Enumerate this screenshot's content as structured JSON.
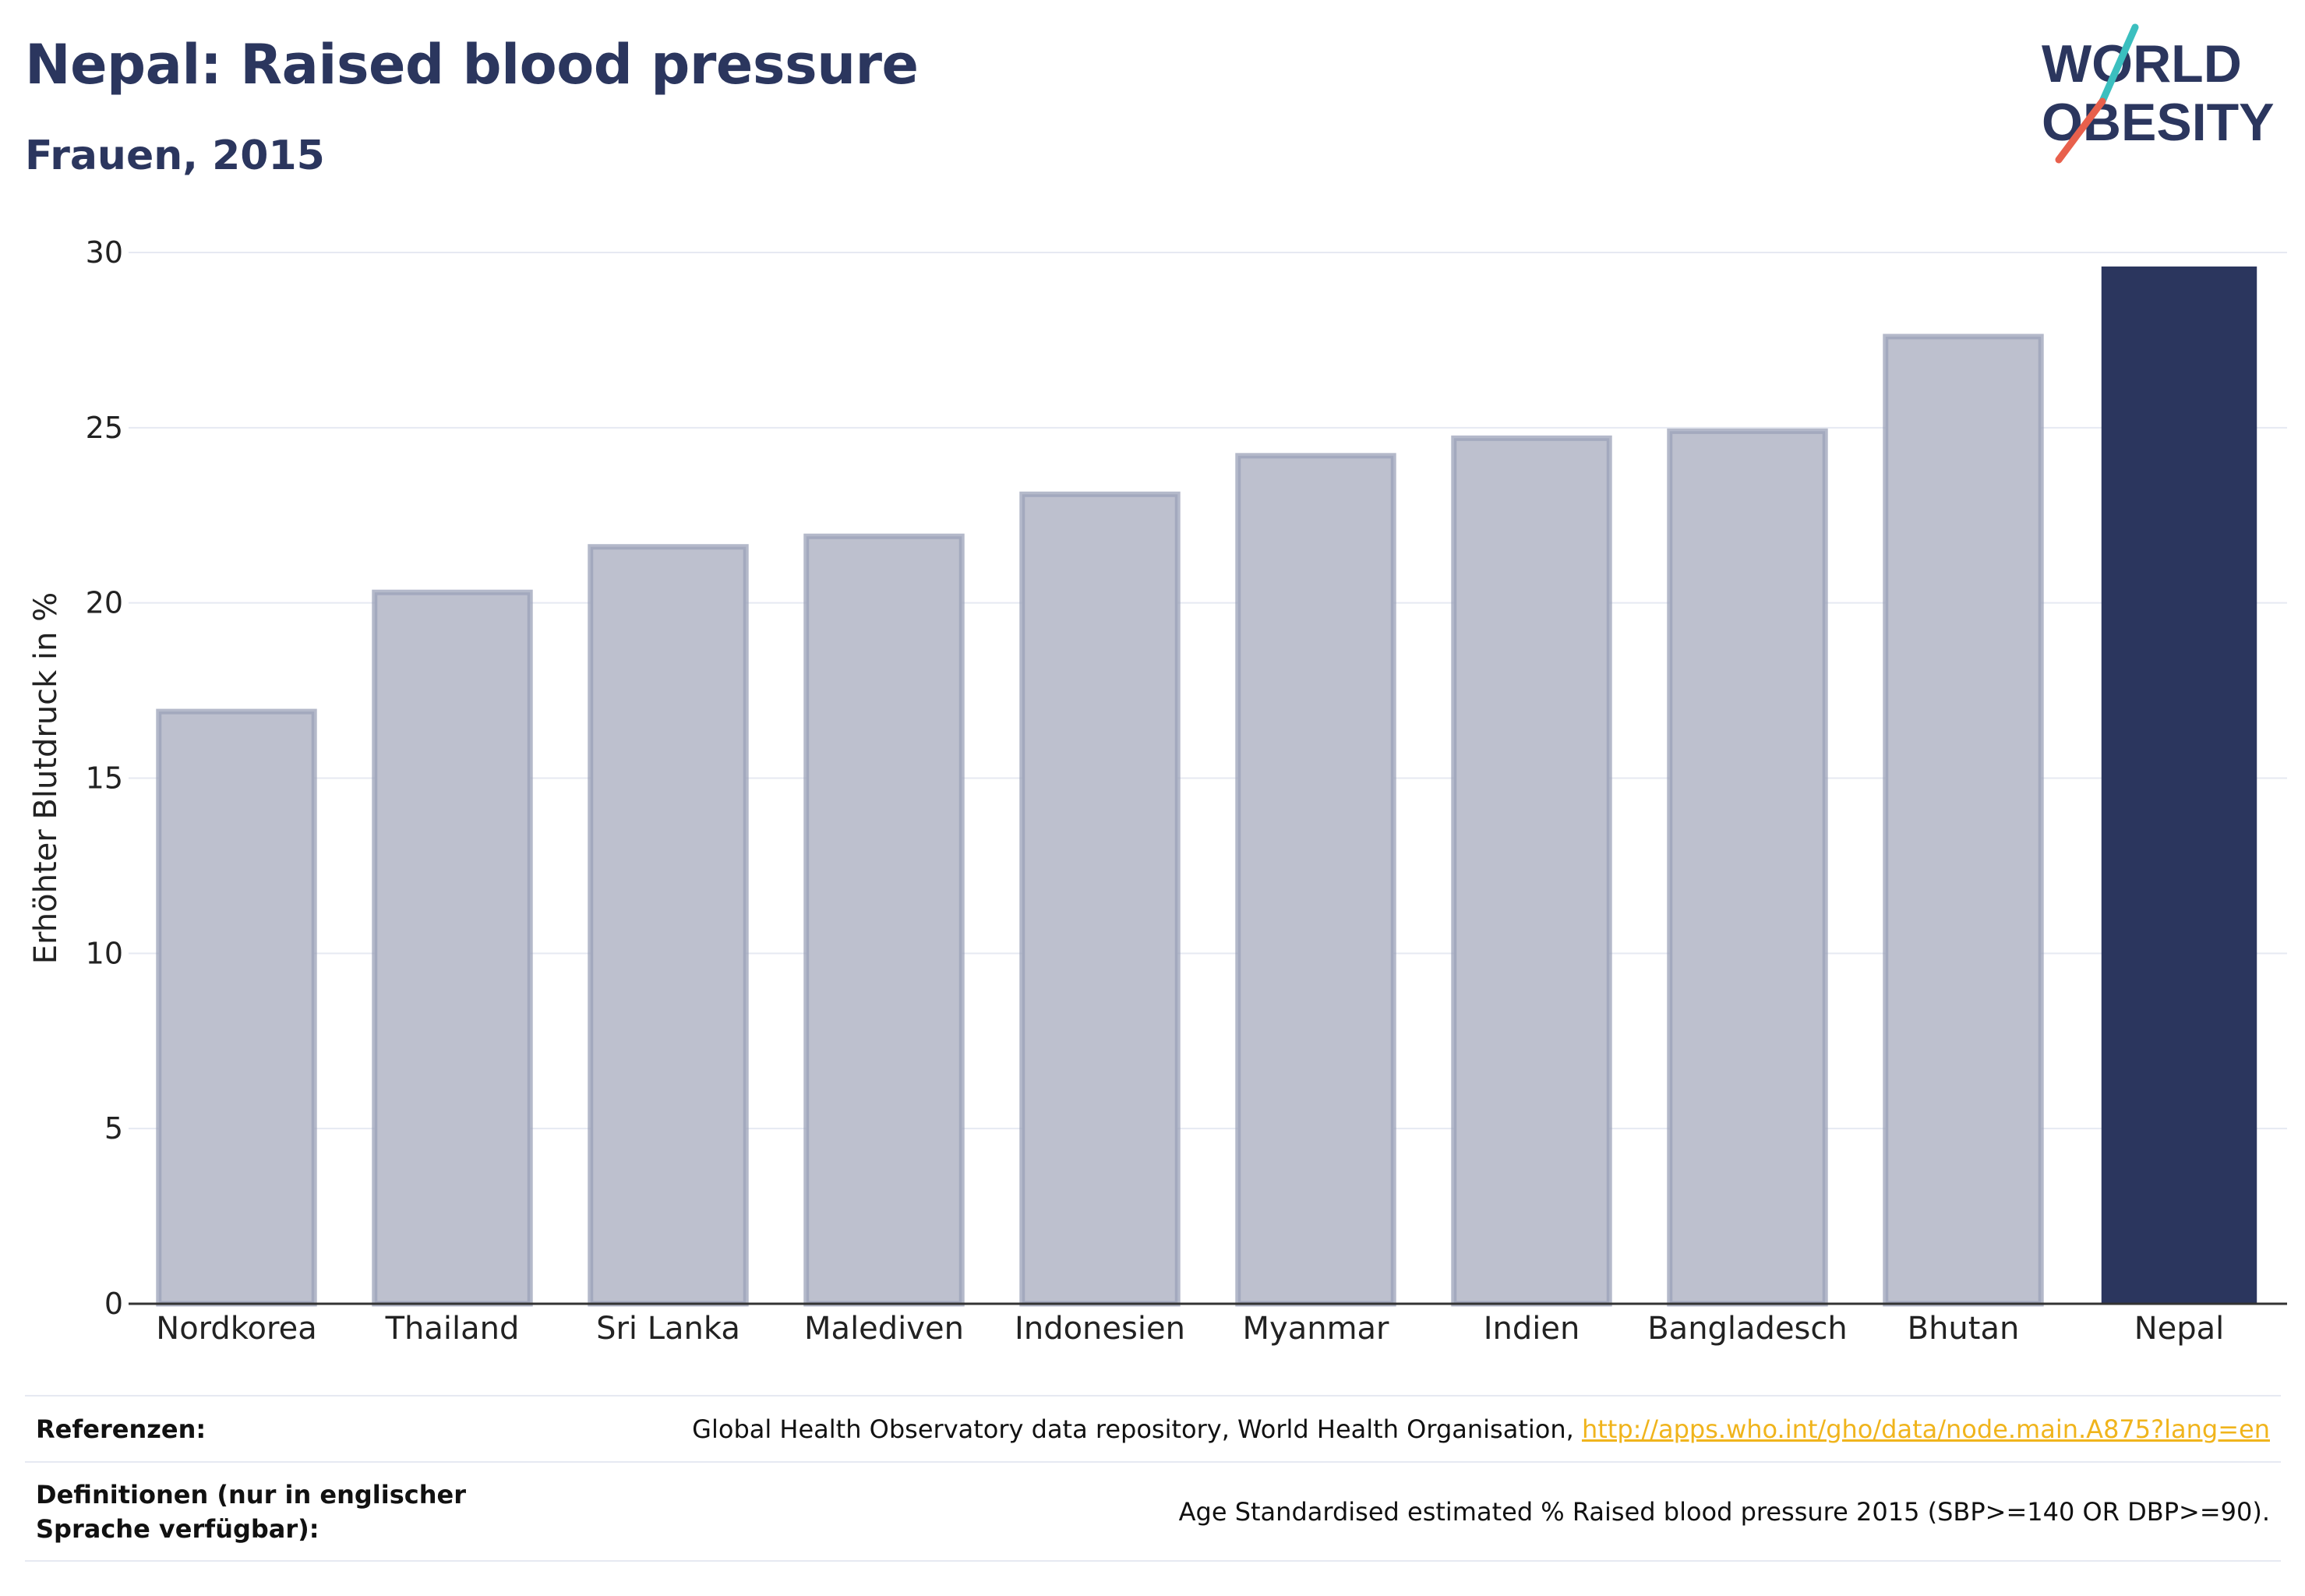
{
  "header": {
    "title": "Nepal: Raised blood pressure",
    "subtitle": "Frauen, 2015"
  },
  "logo": {
    "line1": "WORLD",
    "line2": "OBESITY",
    "accent_colors": [
      "#3bbfbf",
      "#e8604c"
    ]
  },
  "chart_data": {
    "type": "bar",
    "categories": [
      "Nordkorea",
      "Thailand",
      "Sri Lanka",
      "Malediven",
      "Indonesien",
      "Myanmar",
      "Indien",
      "Bangladesch",
      "Bhutan",
      "Nepal"
    ],
    "values": [
      16.9,
      20.3,
      21.6,
      21.9,
      23.1,
      24.2,
      24.7,
      24.9,
      27.6,
      29.6
    ],
    "highlight": "Nepal",
    "ylabel": "Erhöhter Blutdruck in %",
    "xlabel": "",
    "ylim": [
      0,
      30
    ],
    "yticks": [
      0,
      5,
      10,
      15,
      20,
      25,
      30
    ],
    "grid": true,
    "colors": {
      "bar": "#bdc0ce",
      "bar_border": "#9ba1b8",
      "highlight": "#2b365e",
      "grid": "#e6e9f2",
      "axis": "#333333"
    }
  },
  "references": {
    "ref_label": "Referenzen:",
    "ref_text": "Global Health Observatory data repository, World Health Organisation, ",
    "ref_link": "http://apps.who.int/gho/data/node.main.A875?lang=en",
    "def_label": "Definitionen (nur in englischer Sprache verfügbar):",
    "def_text": "Age Standardised estimated % Raised blood pressure 2015 (SBP>=140 OR DBP>=90)."
  }
}
